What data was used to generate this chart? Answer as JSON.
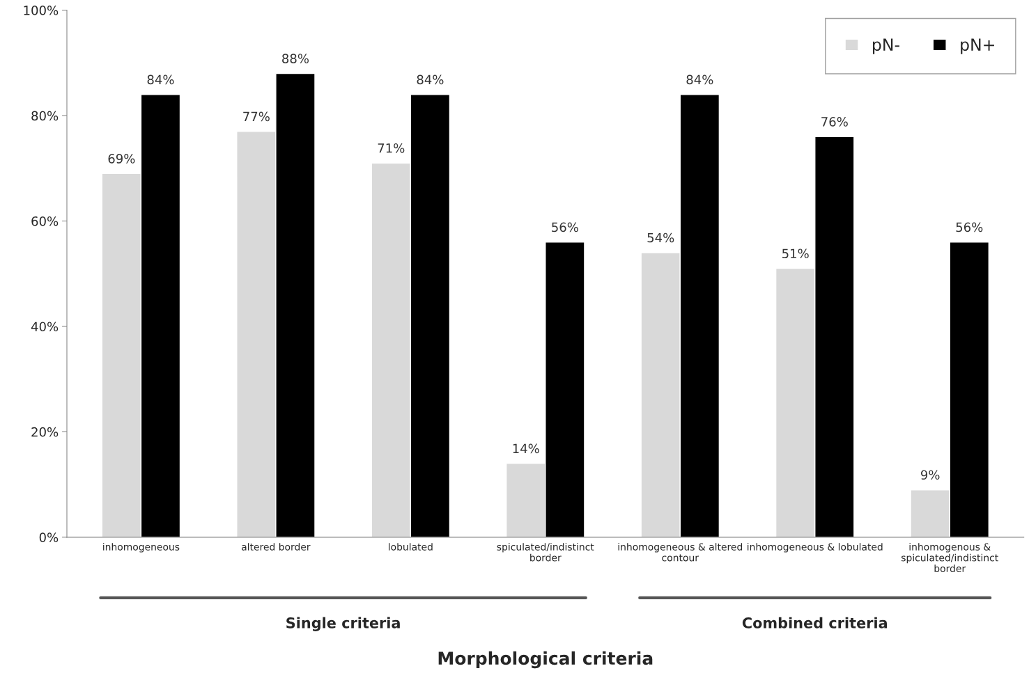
{
  "chart_data": {
    "type": "bar",
    "xlabel": "Morphological criteria",
    "categories": [
      "inhomogeneous",
      "altered border",
      "lobulated",
      "spiculated/indistinct border",
      "inhomogeneous & altered contour",
      "inhomogeneous & lobulated",
      "inhomogenous & spiculated/indistinct border"
    ],
    "series": [
      {
        "name": "pN-",
        "color": "#d9d9d9",
        "values": [
          69,
          77,
          71,
          14,
          54,
          51,
          9
        ],
        "value_labels": [
          "69%",
          "77%",
          "71%",
          "14%",
          "54%",
          "51%",
          "9%"
        ]
      },
      {
        "name": "pN+",
        "color": "#000000",
        "values": [
          84,
          88,
          84,
          56,
          84,
          76,
          56
        ],
        "value_labels": [
          "84%",
          "88%",
          "84%",
          "56%",
          "84%",
          "76%",
          "56%"
        ]
      }
    ],
    "ylim": [
      0,
      100
    ],
    "yticks": [
      {
        "value": 0,
        "label": "0%"
      },
      {
        "value": 20,
        "label": "20%"
      },
      {
        "value": 40,
        "label": "40%"
      },
      {
        "value": 60,
        "label": "60%"
      },
      {
        "value": 80,
        "label": "80%"
      },
      {
        "value": 100,
        "label": "100%"
      }
    ],
    "annotations": [
      "Single criteria",
      "Combined criteria"
    ],
    "legend": "top right",
    "grid": false
  }
}
